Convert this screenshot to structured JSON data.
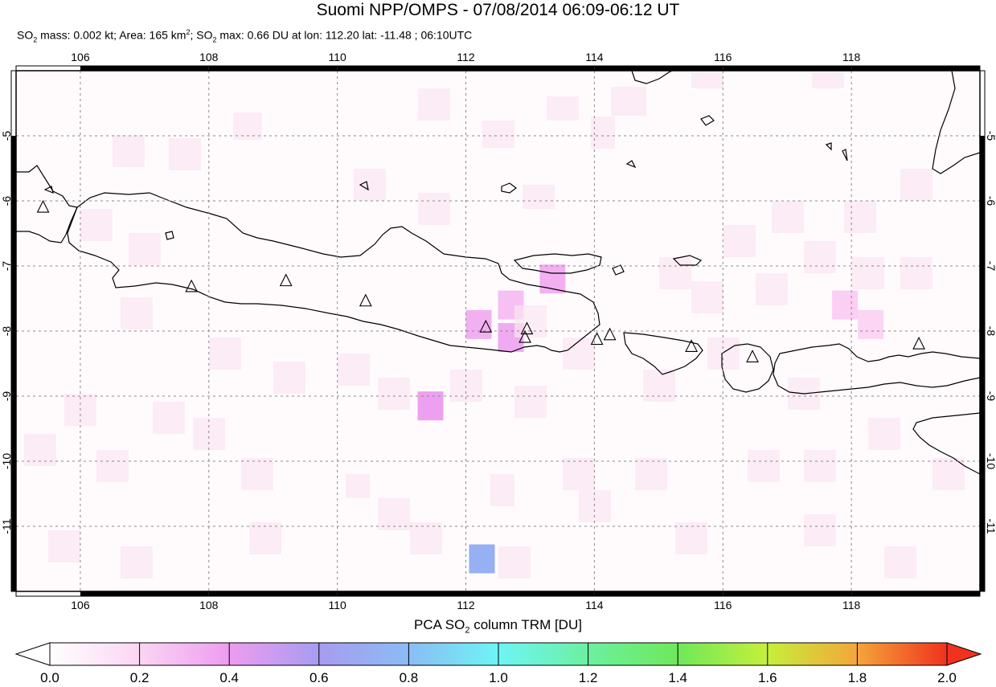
{
  "title": "Suomi NPP/OMPS - 07/08/2014 06:09-06:12 UT",
  "subtitle": {
    "so": "SO",
    "sub2": "2",
    "mass": " mass: 0.002 kt; Area: 165 km",
    "sup2": "2",
    "sep": "; SO",
    "sub2b": "2",
    "max": " max: 0.66 DU at lon: 112.20 lat: -11.48 ; 06:10UTC"
  },
  "map": {
    "lon_range": [
      105,
      120
    ],
    "lat_range": [
      -12,
      -4
    ],
    "lon_ticks": [
      "106",
      "108",
      "110",
      "112",
      "114",
      "116",
      "118"
    ],
    "lat_ticks": [
      "-5",
      "-6",
      "-7",
      "-8",
      "-9",
      "-10",
      "-11"
    ],
    "volcanoes": [
      {
        "lon": 105.42,
        "lat": -6.1
      },
      {
        "lon": 107.73,
        "lat": -7.32
      },
      {
        "lon": 109.2,
        "lat": -7.23
      },
      {
        "lon": 110.44,
        "lat": -7.54
      },
      {
        "lon": 112.31,
        "lat": -7.94
      },
      {
        "lon": 112.95,
        "lat": -7.97
      },
      {
        "lon": 112.92,
        "lat": -8.1
      },
      {
        "lon": 114.04,
        "lat": -8.13
      },
      {
        "lon": 114.24,
        "lat": -8.06
      },
      {
        "lon": 115.51,
        "lat": -8.24
      },
      {
        "lon": 116.46,
        "lat": -8.4
      },
      {
        "lon": 119.05,
        "lat": -8.2
      }
    ],
    "pixels": [
      {
        "lon": 111.45,
        "lat": -9.15,
        "value": 0.35
      },
      {
        "lon": 112.25,
        "lat": -11.5,
        "value": 0.66
      },
      {
        "lon": 112.2,
        "lat": -7.9,
        "value": 0.3
      },
      {
        "lon": 112.7,
        "lat": -8.1,
        "value": 0.32
      },
      {
        "lon": 113.35,
        "lat": -7.2,
        "value": 0.3
      },
      {
        "lon": 112.7,
        "lat": -7.6,
        "value": 0.25
      },
      {
        "lon": 117.9,
        "lat": -7.6,
        "value": 0.2
      },
      {
        "lon": 118.3,
        "lat": -7.9,
        "value": 0.18
      }
    ]
  },
  "colorbar": {
    "title_a": "PCA SO",
    "title_sub": "2",
    "title_b": " column TRM [DU]",
    "ticks": [
      "0.0",
      "0.2",
      "0.4",
      "0.6",
      "0.8",
      "1.0",
      "1.2",
      "1.4",
      "1.6",
      "1.8",
      "2.0"
    ],
    "min": 0.0,
    "max": 2.0,
    "colors": [
      "#ffffff",
      "#fbd5f3",
      "#ed9cf0",
      "#a79cf0",
      "#8bbcf5",
      "#6df5f5",
      "#6cf0a0",
      "#6ee85a",
      "#c6ef3a",
      "#f6ee3a",
      "#f4a53a",
      "#f0321e"
    ]
  }
}
